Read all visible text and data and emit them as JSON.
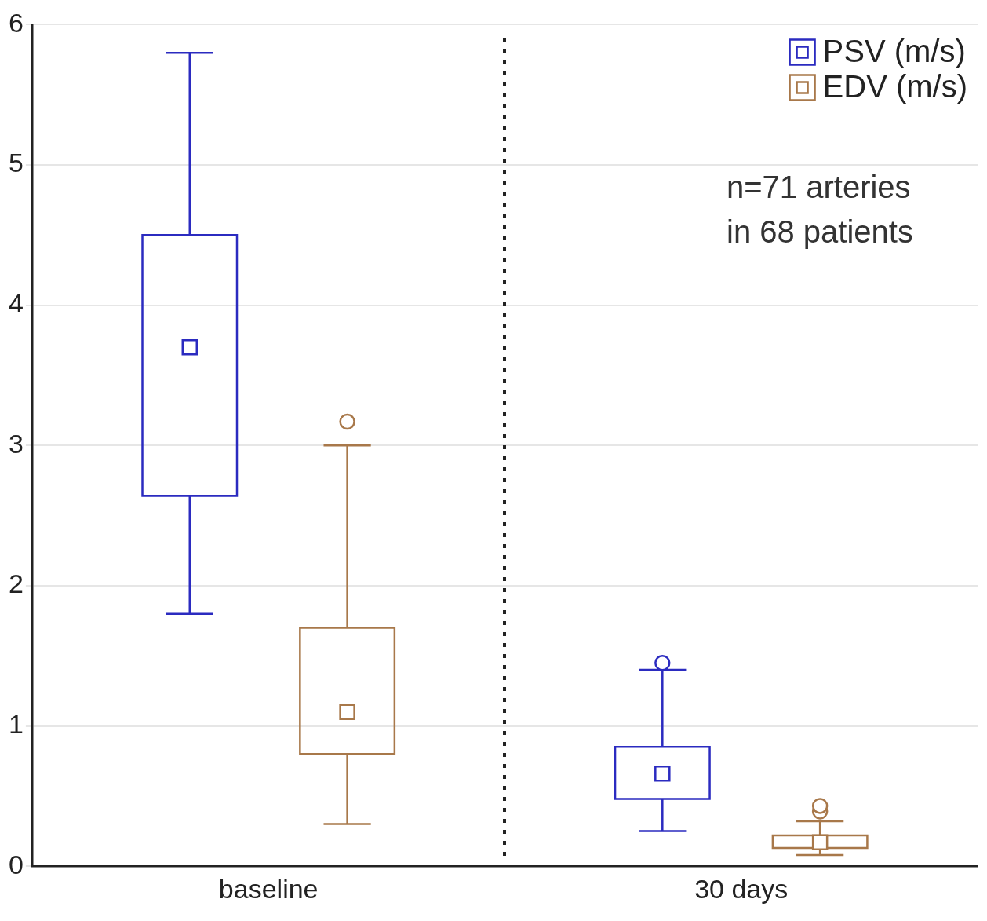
{
  "chart_data": {
    "type": "box",
    "categories": [
      "baseline",
      "30 days"
    ],
    "series": [
      {
        "name": "PSV (m/s)",
        "color": "#2b2bc0",
        "boxes": [
          {
            "low": 1.8,
            "q1": 2.64,
            "median": 3.7,
            "q3": 4.5,
            "high": 5.8
          },
          {
            "low": 0.25,
            "q1": 0.48,
            "median": 0.66,
            "q3": 0.85,
            "high": 1.4,
            "outliers": [
              1.45
            ]
          }
        ]
      },
      {
        "name": "EDV (m/s)",
        "color": "#a8784a",
        "boxes": [
          {
            "low": 0.3,
            "q1": 0.8,
            "median": 1.1,
            "q3": 1.7,
            "high": 3.0,
            "outliers": [
              3.17
            ]
          },
          {
            "low": 0.08,
            "q1": 0.13,
            "median": 0.17,
            "q3": 0.22,
            "high": 0.32,
            "outliers": [
              0.39,
              0.43
            ]
          }
        ]
      }
    ],
    "ylim": [
      0,
      6
    ],
    "yticks": [
      0,
      1,
      2,
      3,
      4,
      5,
      6
    ],
    "grid": "y",
    "legend": "top right",
    "marker": "square",
    "annotations": [
      "n=71 arteries\nin 68 patients"
    ]
  }
}
